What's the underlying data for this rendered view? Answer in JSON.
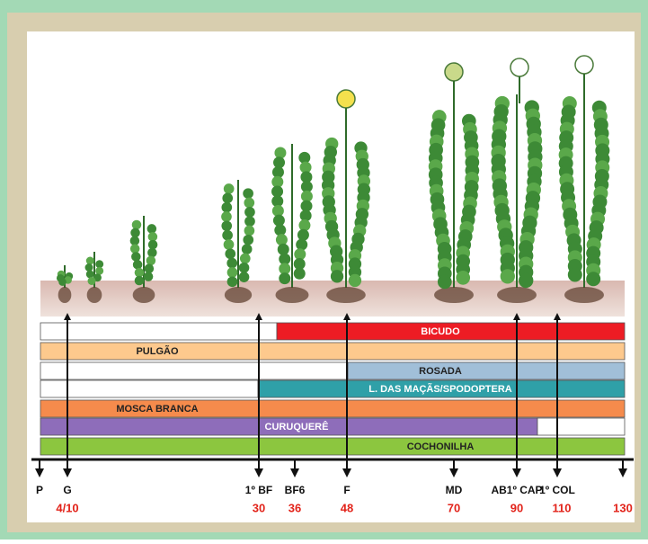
{
  "pests": [
    {
      "label": "BICUDO"
    },
    {
      "label": "PULGÃO"
    },
    {
      "label": "ROSADA"
    },
    {
      "label": "L. DAS MAÇÃS/SPODOPTERA"
    },
    {
      "label": "MOSCA BRANCA"
    },
    {
      "label": "CURUQUERÊ"
    },
    {
      "label": "COCHONILHA"
    }
  ],
  "timeline": {
    "markers": [
      {
        "label": "P"
      },
      {
        "label": "G",
        "day": "4/10"
      },
      {
        "label": "1º BF",
        "day": 30
      },
      {
        "label": "BF6",
        "day": 36
      },
      {
        "label": "F",
        "day": 48
      },
      {
        "label": "MD",
        "day": 70
      },
      {
        "label": "AB1º CAP",
        "day": 90
      },
      {
        "label": "1º COL",
        "day": 110
      },
      {
        "day": 130
      }
    ]
  }
}
